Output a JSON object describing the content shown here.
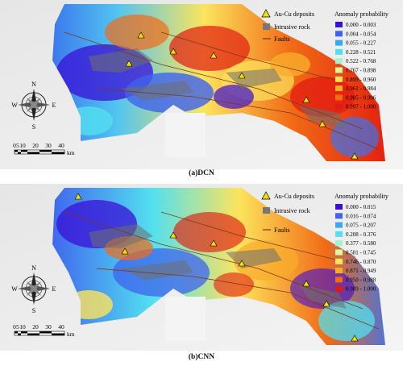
{
  "figure": {
    "panels": [
      {
        "caption": "(a)DCN",
        "legend_symbols": {
          "deposits": "Au-Cu deposits",
          "intrusive": "Intrusive rock",
          "faults": "Faults"
        },
        "legend_title": "Anomaly probability",
        "classes": [
          {
            "range": "0.000 - 0.003",
            "color": "#3a0fd6"
          },
          {
            "range": "0.004 - 0.054",
            "color": "#3f63ee"
          },
          {
            "range": "0.055 - 0.227",
            "color": "#3aa7f2"
          },
          {
            "range": "0.228 - 0.521",
            "color": "#52e0f0"
          },
          {
            "range": "0.522 - 0.768",
            "color": "#a4f2ce"
          },
          {
            "range": "0.767 - 0.898",
            "color": "#e1f59f"
          },
          {
            "range": "0.899 - 0.960",
            "color": "#fce45d"
          },
          {
            "range": "0.961 - 0.984",
            "color": "#f9ac2a"
          },
          {
            "range": "0.985 - 0.996",
            "color": "#f26b16"
          },
          {
            "range": "0.997 - 1.000",
            "color": "#e11b10"
          }
        ]
      },
      {
        "caption": "(b)CNN",
        "legend_symbols": {
          "deposits": "Au-Cu deposits",
          "intrusive": "Intrusive rock",
          "faults": "Faults"
        },
        "legend_title": "Anomaly probability",
        "classes": [
          {
            "range": "0.000 - 0.015",
            "color": "#3a0fd6"
          },
          {
            "range": "0.016 - 0.074",
            "color": "#3f63ee"
          },
          {
            "range": "0.075 - 0.207",
            "color": "#3aa7f2"
          },
          {
            "range": "0.208 - 0.376",
            "color": "#52e0f0"
          },
          {
            "range": "0.377 - 0.580",
            "color": "#a4f2ce"
          },
          {
            "range": "0.581 - 0.745",
            "color": "#e1f59f"
          },
          {
            "range": "0.746 - 0.870",
            "color": "#fce45d"
          },
          {
            "range": "0.871 - 0.949",
            "color": "#f9ac2a"
          },
          {
            "range": "0.950 - 0.988",
            "color": "#f26b16"
          },
          {
            "range": "0.989 - 1.000",
            "color": "#e11b10"
          }
        ]
      }
    ],
    "compass": {
      "n": "N",
      "s": "S",
      "e": "E",
      "w": "W"
    },
    "scale": {
      "ticks": [
        "0",
        "5",
        "10",
        "20",
        "30",
        "40"
      ],
      "unit": "km"
    }
  }
}
